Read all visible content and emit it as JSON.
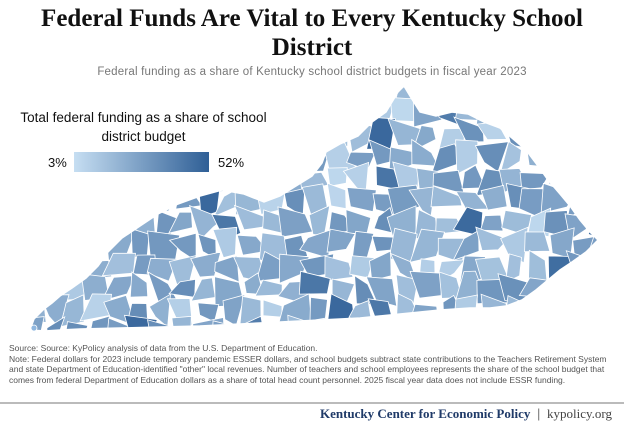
{
  "title": "Federal Funds Are Vital to Every Kentucky School District",
  "subtitle": "Federal funding as a share of Kentucky school district budgets in fiscal year 2023",
  "legend": {
    "title": "Total federal funding as a share of school district budget",
    "min_label": "3%",
    "max_label": "52%",
    "min_value": 3,
    "max_value": 52,
    "color_low": "#c6def2",
    "color_high": "#2f5f96"
  },
  "map": {
    "region": "Kentucky",
    "units": "school districts",
    "border_color": "#ffffff"
  },
  "notes": {
    "source": "Source: Source: KyPolicy analysis of data from the U.S. Department of Education.",
    "note": "Note: Federal dollars for 2023 include temporary pandemic ESSER dollars, and school budgets subtract state contributions to the Teachers Retirement System and state Department of Education-identified \"other\" local revenues. Number of teachers and school employees represents the share of the school budget that comes from federal Department of Education dollars as a share of total head count personnel. 2025 fiscal year data does not include ESSR funding."
  },
  "footer": {
    "organization": "Kentucky Center for Economic Policy",
    "separator": "|",
    "website": "kypolicy.org"
  }
}
